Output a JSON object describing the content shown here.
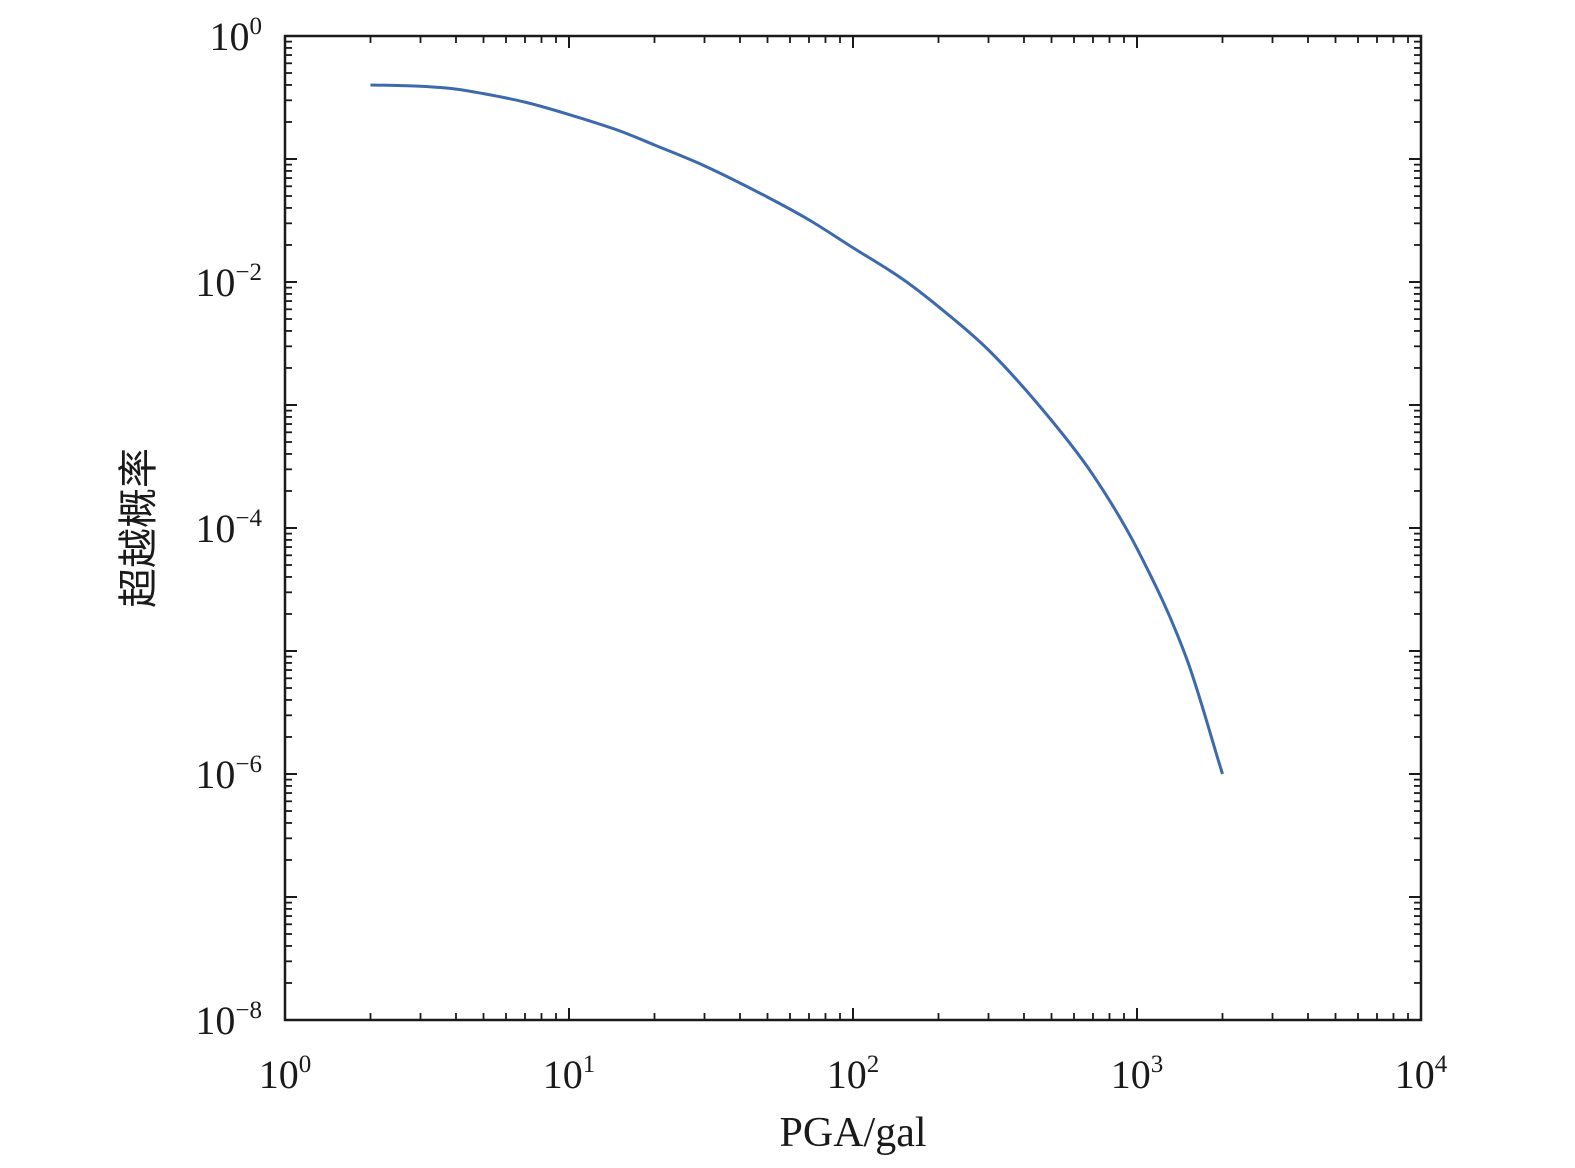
{
  "chart_data": {
    "type": "line",
    "title": "",
    "xlabel": "PGA/gal",
    "ylabel": "超越概率",
    "xscale": "log",
    "yscale": "log",
    "xlim": [
      1,
      10000
    ],
    "ylim": [
      1e-08,
      1
    ],
    "grid": false,
    "legend": "none",
    "x_ticks": [
      {
        "value": 1,
        "base": "10",
        "exp": "0"
      },
      {
        "value": 10,
        "base": "10",
        "exp": "1"
      },
      {
        "value": 100,
        "base": "10",
        "exp": "2"
      },
      {
        "value": 1000,
        "base": "10",
        "exp": "3"
      },
      {
        "value": 10000,
        "base": "10",
        "exp": "4"
      }
    ],
    "y_ticks": [
      {
        "value": 1,
        "base": "10",
        "exp": "0"
      },
      {
        "value": 0.01,
        "base": "10",
        "exp": "−2"
      },
      {
        "value": 0.0001,
        "base": "10",
        "exp": "−4"
      },
      {
        "value": 1e-06,
        "base": "10",
        "exp": "−6"
      },
      {
        "value": 1e-08,
        "base": "10",
        "exp": "−8"
      }
    ],
    "series": [
      {
        "color": "#3d6aad",
        "x": [
          2,
          3,
          4,
          5,
          7,
          10,
          15,
          20,
          30,
          50,
          70,
          100,
          150,
          200,
          300,
          500,
          700,
          1000,
          1500,
          2000
        ],
        "y": [
          0.4,
          0.39,
          0.37,
          0.34,
          0.29,
          0.23,
          0.17,
          0.13,
          0.088,
          0.049,
          0.032,
          0.019,
          0.0105,
          0.0063,
          0.0028,
          0.00075,
          0.00027,
          6.8e-05,
          8.5e-06,
          1e-06
        ]
      }
    ]
  }
}
